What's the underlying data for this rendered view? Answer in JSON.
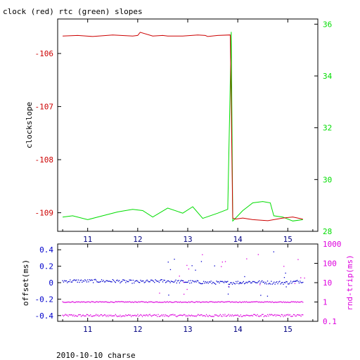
{
  "title": "clock (red) rtc (green) slopes",
  "caption": "2010-10-10 charse",
  "colors": {
    "clock": "#cc0000",
    "rtc": "#00dd00",
    "offset": "#0000cc",
    "rndtrip": "#dd00dd",
    "xtick": "#000080",
    "frame": "#000000"
  },
  "chart_data": [
    {
      "type": "line",
      "xlabel": "",
      "ylabel": "clockslope",
      "y2label": "",
      "xlim": [
        10.4,
        15.6
      ],
      "ylim": [
        -109.35,
        -105.35
      ],
      "y2lim": [
        28,
        36.2
      ],
      "x_ticks": [
        11,
        12,
        13,
        14,
        15
      ],
      "x_tick_labels": [
        "11",
        "12",
        "13",
        "14",
        "15"
      ],
      "y_ticks": [
        -109,
        -108,
        -107,
        -106
      ],
      "y_tick_labels": [
        "-109",
        "-108",
        "-107",
        "-106"
      ],
      "y2_ticks": [
        28,
        30,
        32,
        34,
        36
      ],
      "y2_tick_labels": [
        "28",
        "30",
        "32",
        "34",
        "36"
      ],
      "grid": false,
      "series": [
        {
          "axis": "left",
          "x": [
            10.5,
            10.8,
            11.1,
            11.5,
            11.9,
            12.0,
            12.05,
            12.3,
            12.5,
            12.6,
            12.9,
            13.2,
            13.35,
            13.4,
            13.6,
            13.85,
            13.9,
            13.95,
            14.1,
            14.3,
            14.6,
            14.9,
            15.1,
            15.3
          ],
          "y": [
            -105.67,
            -105.66,
            -105.68,
            -105.65,
            -105.67,
            -105.66,
            -105.6,
            -105.67,
            -105.66,
            -105.67,
            -105.67,
            -105.65,
            -105.66,
            -105.68,
            -105.66,
            -105.65,
            -109.1,
            -109.12,
            -109.1,
            -109.13,
            -109.15,
            -109.1,
            -109.08,
            -109.12
          ]
        },
        {
          "axis": "right",
          "x": [
            10.5,
            10.7,
            11.0,
            11.3,
            11.6,
            11.9,
            12.1,
            12.3,
            12.6,
            12.9,
            13.1,
            13.3,
            13.6,
            13.8,
            13.87,
            13.9,
            13.95,
            14.1,
            14.3,
            14.5,
            14.65,
            14.72,
            14.9,
            15.1,
            15.3
          ],
          "y": [
            28.55,
            28.6,
            28.45,
            28.6,
            28.75,
            28.85,
            28.8,
            28.55,
            28.9,
            28.7,
            28.95,
            28.5,
            28.7,
            28.85,
            35.7,
            28.4,
            28.5,
            28.8,
            29.1,
            29.15,
            29.1,
            28.6,
            28.55,
            28.4,
            28.45
          ]
        }
      ]
    },
    {
      "type": "scatter",
      "xlabel": "",
      "ylabel": "offset(ms)",
      "y2label": "rnd-trip(ms)",
      "xlim": [
        10.4,
        15.6
      ],
      "ylim": [
        -0.47,
        0.47
      ],
      "y2lim": [
        0.1,
        1000
      ],
      "y2scale": "log",
      "x_ticks": [
        11,
        12,
        13,
        14,
        15
      ],
      "x_tick_labels": [
        "11",
        "12",
        "13",
        "14",
        "15"
      ],
      "y_ticks": [
        -0.4,
        -0.2,
        0,
        0.2,
        0.4
      ],
      "y_tick_labels": [
        "-0.4",
        "-0.2",
        "0",
        "0.2",
        "0.4"
      ],
      "y2_ticks": [
        0.1,
        1,
        10,
        100,
        1000
      ],
      "y2_tick_labels": [
        "0.1",
        "1",
        "10",
        "100",
        "1000"
      ],
      "grid": false,
      "series": [
        {
          "axis": "left",
          "x": [
            10.5,
            11.0,
            11.5,
            12.0,
            12.5,
            13.0,
            13.5,
            13.9,
            14.3,
            14.7,
            15.0,
            15.3
          ],
          "y": [
            0.02,
            0.02,
            0.02,
            0.01,
            0.02,
            0.01,
            0.0,
            0.0,
            0.01,
            0.0,
            0.0,
            0.02
          ]
        },
        {
          "axis": "right",
          "x": [
            10.5,
            11.0,
            11.5,
            12.0,
            12.5,
            13.0,
            13.5,
            13.9,
            14.3,
            14.7,
            15.0,
            15.3
          ],
          "y": [
            0.2,
            0.2,
            0.2,
            0.2,
            0.2,
            0.2,
            0.2,
            0.2,
            0.2,
            0.2,
            0.2,
            0.2
          ]
        },
        {
          "axis": "right",
          "x": [
            10.5,
            11.0,
            11.5,
            12.0,
            12.5,
            13.0,
            13.5,
            13.9,
            14.3,
            14.7,
            15.0,
            15.3
          ],
          "y": [
            1.0,
            1.0,
            1.0,
            1.0,
            1.0,
            1.0,
            1.0,
            1.0,
            1.0,
            1.0,
            1.0,
            1.0
          ]
        }
      ]
    }
  ]
}
